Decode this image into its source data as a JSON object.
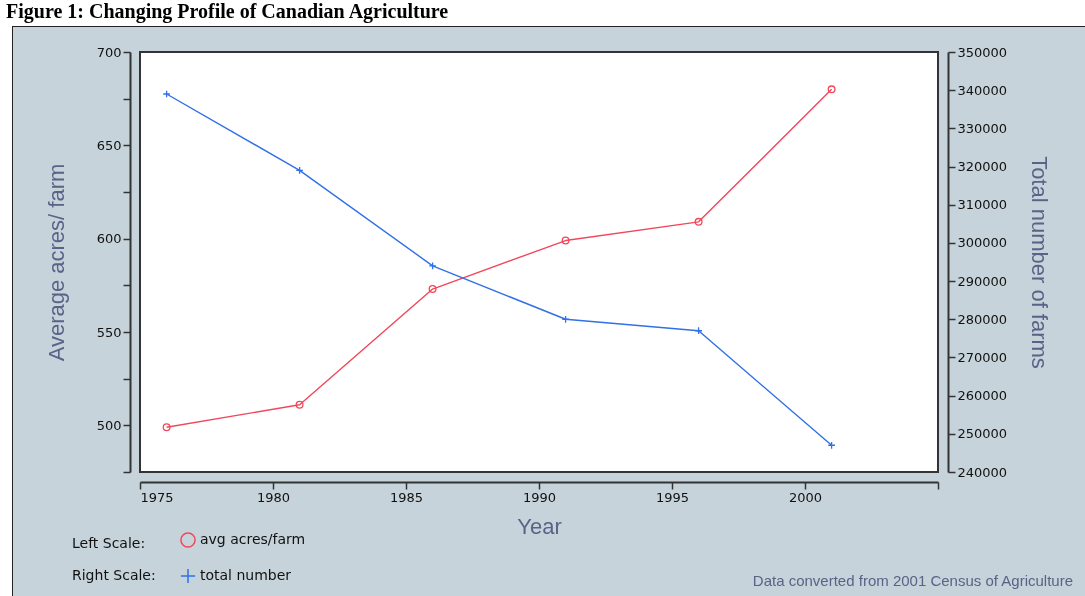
{
  "chart_data": {
    "type": "line",
    "title": "Figure 1: Changing Profile of Canadian Agriculture",
    "xlabel": "Year",
    "ylabel": "Average acres/ farm",
    "y2label": "Total number of farms",
    "x": [
      1976,
      1981,
      1986,
      1991,
      1996,
      2001
    ],
    "xlim": [
      1975,
      2005
    ],
    "xticks": [
      1975,
      1980,
      1985,
      1990,
      1995,
      2000,
      {
        "value": 2005,
        "label": null
      }
    ],
    "ylim": [
      475,
      700
    ],
    "yticks": [
      {
        "value": 475,
        "label": null
      },
      500,
      {
        "value": 525,
        "label": null
      },
      550,
      {
        "value": 575,
        "label": null
      },
      600,
      {
        "value": 625,
        "label": null
      },
      650,
      {
        "value": 675,
        "label": null
      },
      700
    ],
    "y2lim": [
      240000,
      350000
    ],
    "y2ticks": [
      240000,
      250000,
      260000,
      270000,
      280000,
      290000,
      300000,
      310000,
      320000,
      330000,
      340000,
      350000
    ],
    "series": [
      {
        "name": "avg acres/farm",
        "color": "#f0485a",
        "marker": "circle",
        "values": [
          499,
          511,
          573,
          599,
          609,
          680
        ]
      },
      {
        "name": "total number",
        "color": "#3070e8",
        "marker": "cross",
        "axis": "y2",
        "values": [
          339000,
          319000,
          294000,
          280000,
          277000,
          247000
        ]
      }
    ],
    "grid": false,
    "legend": "bottom left",
    "line_style": "solid",
    "annotations": [
      "Left Scale:",
      "Right Scale:",
      "Data converted from 2001 Census of Agriculture"
    ]
  }
}
